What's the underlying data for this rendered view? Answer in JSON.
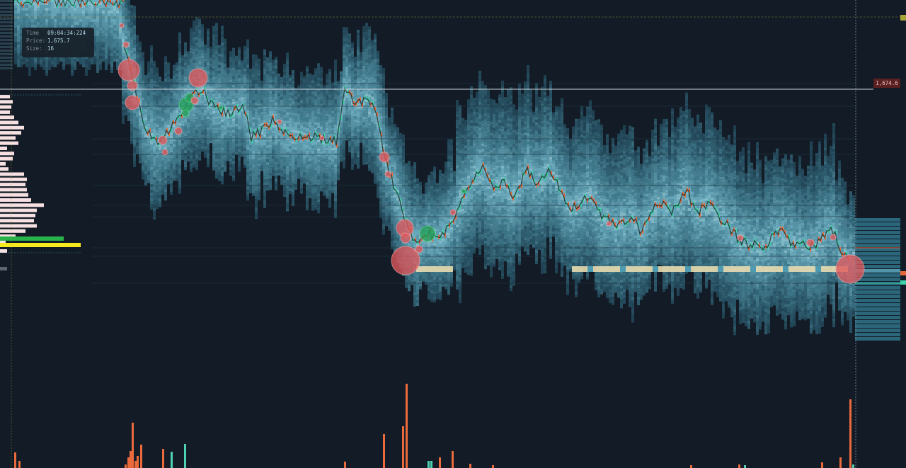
{
  "tooltip": {
    "time_label": "Time",
    "time_value": "09:04:34:224",
    "price_label": "Price:",
    "price_value": "1,675.7",
    "size_label": "Size:",
    "size_value": "16"
  },
  "crosshair": {
    "price_tag": "1,674.6"
  },
  "colors": {
    "background": "#131c26",
    "heatmap_light": "#7cc8dc",
    "heatmap_mid": "#4e9ab0",
    "heatmap_dark": "#2f6f85",
    "sell_bubble": "#e0585c",
    "buy_bubble": "#23a05a",
    "candle_up": "#3fd3a8",
    "candle_down": "#e8683a",
    "volume_sell": "#ea6a3c",
    "volume_buy": "#4fd1b5",
    "dom_bid": "#f6e0e2",
    "dom_highlight_green": "#27b34a",
    "dom_highlight_yellow": "#f5ea1e",
    "level_band": "#e8dcb0",
    "crosshair_line": "#c9d3dc",
    "price_tag_bg": "#5a1f20"
  }
}
